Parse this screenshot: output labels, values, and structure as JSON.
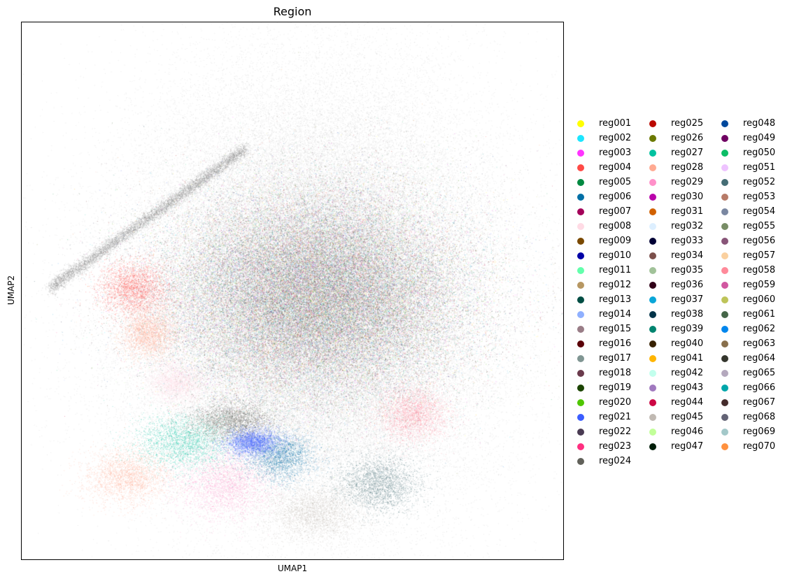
{
  "chart_data": {
    "type": "scatter",
    "title": "Region",
    "xlabel": "UMAP1",
    "ylabel": "UMAP2",
    "grid": false,
    "ticks": false,
    "legend_placement": "right, outside plot, 3 columns",
    "categories": [
      {
        "name": "reg001",
        "color": "#ffff00"
      },
      {
        "name": "reg002",
        "color": "#1ce6ff"
      },
      {
        "name": "reg003",
        "color": "#ff34ff"
      },
      {
        "name": "reg004",
        "color": "#ff4a46"
      },
      {
        "name": "reg005",
        "color": "#008941"
      },
      {
        "name": "reg006",
        "color": "#006fa6"
      },
      {
        "name": "reg007",
        "color": "#a30059"
      },
      {
        "name": "reg008",
        "color": "#ffdbe5"
      },
      {
        "name": "reg009",
        "color": "#7a4900"
      },
      {
        "name": "reg010",
        "color": "#0000a6"
      },
      {
        "name": "reg011",
        "color": "#63ffac"
      },
      {
        "name": "reg012",
        "color": "#b79762"
      },
      {
        "name": "reg013",
        "color": "#004d43"
      },
      {
        "name": "reg014",
        "color": "#8fb0ff"
      },
      {
        "name": "reg015",
        "color": "#997d87"
      },
      {
        "name": "reg016",
        "color": "#5a0007"
      },
      {
        "name": "reg017",
        "color": "#809693"
      },
      {
        "name": "reg018",
        "color": "#6a3a4c"
      },
      {
        "name": "reg019",
        "color": "#1b4400"
      },
      {
        "name": "reg020",
        "color": "#4fc601"
      },
      {
        "name": "reg021",
        "color": "#3b5dff"
      },
      {
        "name": "reg022",
        "color": "#4a3b53"
      },
      {
        "name": "reg023",
        "color": "#ff2f80"
      },
      {
        "name": "reg024",
        "color": "#61615a"
      },
      {
        "name": "reg025",
        "color": "#ba0900"
      },
      {
        "name": "reg026",
        "color": "#6b7900"
      },
      {
        "name": "reg027",
        "color": "#00c2a0"
      },
      {
        "name": "reg028",
        "color": "#ffaa92"
      },
      {
        "name": "reg029",
        "color": "#ff90c9"
      },
      {
        "name": "reg030",
        "color": "#b903aa"
      },
      {
        "name": "reg031",
        "color": "#d16100"
      },
      {
        "name": "reg032",
        "color": "#ddefff"
      },
      {
        "name": "reg033",
        "color": "#000035"
      },
      {
        "name": "reg034",
        "color": "#7b4f4b"
      },
      {
        "name": "reg035",
        "color": "#a1c299"
      },
      {
        "name": "reg036",
        "color": "#300018"
      },
      {
        "name": "reg037",
        "color": "#0aa6d8"
      },
      {
        "name": "reg038",
        "color": "#013349"
      },
      {
        "name": "reg039",
        "color": "#00846f"
      },
      {
        "name": "reg040",
        "color": "#372101"
      },
      {
        "name": "reg041",
        "color": "#ffb500"
      },
      {
        "name": "reg042",
        "color": "#c2ffed"
      },
      {
        "name": "reg043",
        "color": "#a079bf"
      },
      {
        "name": "reg044",
        "color": "#cc0744"
      },
      {
        "name": "reg045",
        "color": "#c0b9b2"
      },
      {
        "name": "reg046",
        "color": "#c2ff99"
      },
      {
        "name": "reg047",
        "color": "#001e09"
      },
      {
        "name": "reg048",
        "color": "#00489c"
      },
      {
        "name": "reg049",
        "color": "#6f0062"
      },
      {
        "name": "reg050",
        "color": "#0cbd66"
      },
      {
        "name": "reg051",
        "color": "#eec3ff"
      },
      {
        "name": "reg052",
        "color": "#456d75"
      },
      {
        "name": "reg053",
        "color": "#b77b68"
      },
      {
        "name": "reg054",
        "color": "#7a87a1"
      },
      {
        "name": "reg055",
        "color": "#788d66"
      },
      {
        "name": "reg056",
        "color": "#885578"
      },
      {
        "name": "reg057",
        "color": "#fad09f"
      },
      {
        "name": "reg058",
        "color": "#ff8a9a"
      },
      {
        "name": "reg059",
        "color": "#d157a0"
      },
      {
        "name": "reg060",
        "color": "#bec459"
      },
      {
        "name": "reg061",
        "color": "#456648"
      },
      {
        "name": "reg062",
        "color": "#0086ed"
      },
      {
        "name": "reg063",
        "color": "#886f4c"
      },
      {
        "name": "reg064",
        "color": "#34362d"
      },
      {
        "name": "reg065",
        "color": "#b4a8bd"
      },
      {
        "name": "reg066",
        "color": "#00a6aa"
      },
      {
        "name": "reg067",
        "color": "#452c2c"
      },
      {
        "name": "reg068",
        "color": "#636375"
      },
      {
        "name": "reg069",
        "color": "#a3c8c9"
      },
      {
        "name": "reg070",
        "color": "#ff913f"
      }
    ]
  }
}
